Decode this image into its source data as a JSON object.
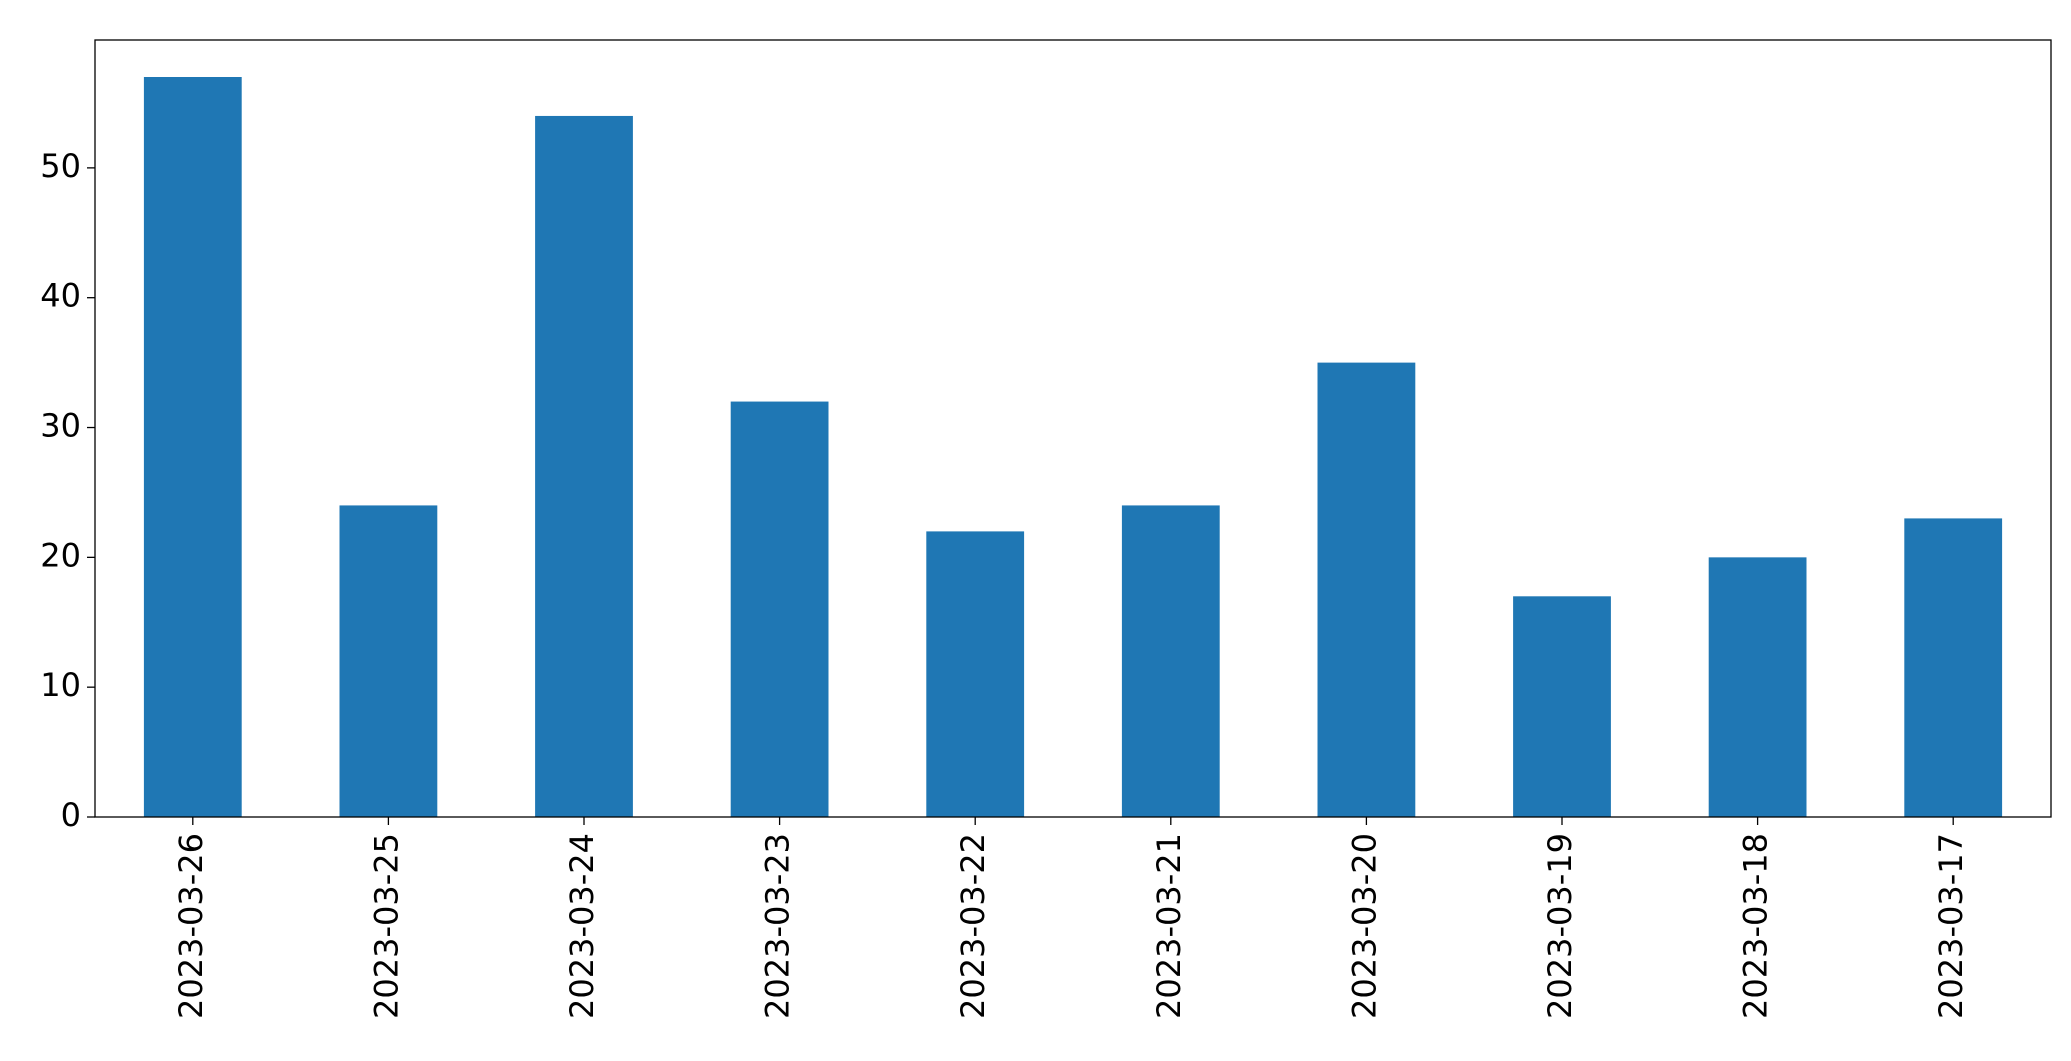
{
  "chart_data": {
    "type": "bar",
    "categories": [
      "2023-03-26",
      "2023-03-25",
      "2023-03-24",
      "2023-03-23",
      "2023-03-22",
      "2023-03-21",
      "2023-03-20",
      "2023-03-19",
      "2023-03-18",
      "2023-03-17"
    ],
    "values": [
      57,
      24,
      54,
      32,
      22,
      24,
      35,
      17,
      20,
      23
    ],
    "color": "#1f77b4",
    "ylim": [
      0,
      59.85
    ],
    "yticks": [
      0,
      10,
      20,
      30,
      40,
      50
    ],
    "grid": false
  }
}
